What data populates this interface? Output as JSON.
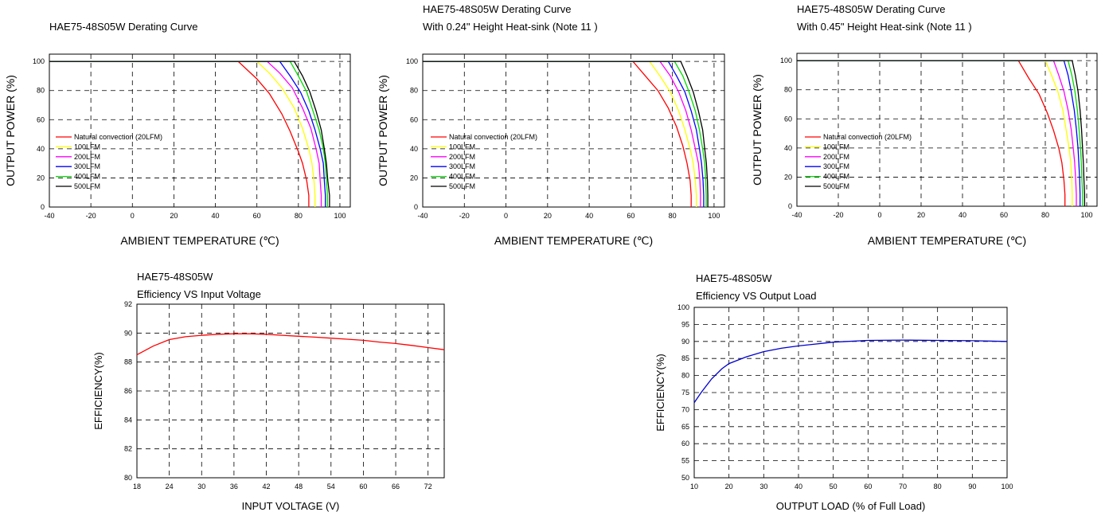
{
  "chart_data": [
    {
      "id": "derate1",
      "type": "line",
      "title_lines": [
        "HAE75-48S05W Derating Curve"
      ],
      "xlabel": "AMBIENT TEMPERATURE (℃)",
      "ylabel": "OUTPUT POWER (%)",
      "xlim": [
        -40,
        105
      ],
      "ylim": [
        0,
        105
      ],
      "xticks": [
        -40,
        -20,
        0,
        20,
        40,
        60,
        80,
        100
      ],
      "yticks": [
        0,
        20,
        40,
        60,
        80,
        100
      ],
      "legend_position": "bottom-left",
      "series": [
        {
          "name": "Natural convection (20LFM)",
          "color": "#ff0000",
          "x": [
            -40,
            51,
            60,
            66,
            72,
            76,
            80,
            82,
            84,
            85,
            85
          ],
          "y": [
            100,
            100,
            88,
            78,
            64,
            52,
            38,
            30,
            18,
            8,
            0
          ]
        },
        {
          "name": "100LFM",
          "color": "#ffff00",
          "x": [
            -40,
            60,
            66,
            72,
            78,
            82,
            85,
            86.5,
            87.5,
            88,
            88
          ],
          "y": [
            100,
            100,
            92,
            82,
            68,
            54,
            40,
            30,
            18,
            8,
            0
          ]
        },
        {
          "name": "200LFM",
          "color": "#ff00ff",
          "x": [
            -40,
            65,
            71,
            77,
            82,
            86,
            88.5,
            90,
            90.5,
            91,
            91
          ],
          "y": [
            100,
            100,
            92,
            82,
            68,
            54,
            40,
            30,
            18,
            8,
            0
          ]
        },
        {
          "name": "300LFM",
          "color": "#0000ff",
          "x": [
            -40,
            71,
            76,
            81,
            85,
            88,
            90.5,
            92,
            92.5,
            93,
            93
          ],
          "y": [
            100,
            100,
            90,
            79,
            66,
            53,
            40,
            30,
            18,
            8,
            0
          ]
        },
        {
          "name": "400LFM",
          "color": "#00dd00",
          "x": [
            -40,
            76,
            80,
            84,
            87,
            90,
            92,
            93,
            93.5,
            94,
            94
          ],
          "y": [
            100,
            100,
            90,
            79,
            66,
            53,
            40,
            30,
            18,
            8,
            0
          ]
        },
        {
          "name": "500LFM",
          "color": "#000000",
          "x": [
            -40,
            78,
            82,
            85.5,
            88.5,
            91,
            92.5,
            93.5,
            94.2,
            95,
            95
          ],
          "y": [
            100,
            100,
            90,
            79,
            66,
            53,
            40,
            30,
            18,
            8,
            0
          ]
        }
      ]
    },
    {
      "id": "derate2",
      "type": "line",
      "title_lines": [
        "HAE75-48S05W Derating Curve",
        "With 0.24\" Height Heat-sink (Note 11 )"
      ],
      "xlabel": "AMBIENT TEMPERATURE (℃)",
      "ylabel": "OUTPUT POWER (%)",
      "xlim": [
        -40,
        105
      ],
      "ylim": [
        0,
        105
      ],
      "xticks": [
        -40,
        -20,
        0,
        20,
        40,
        60,
        80,
        100
      ],
      "yticks": [
        0,
        20,
        40,
        60,
        80,
        100
      ],
      "legend_position": "bottom-left",
      "series": [
        {
          "name": "Natural convection (20LFM)",
          "color": "#ff0000",
          "x": [
            -40,
            61,
            67,
            73,
            78,
            82,
            85,
            87,
            88.5,
            89,
            89
          ],
          "y": [
            100,
            100,
            90,
            80,
            68,
            55,
            42,
            30,
            18,
            8,
            0
          ]
        },
        {
          "name": "100LFM",
          "color": "#ffff00",
          "x": [
            -40,
            69,
            74,
            79,
            83,
            86,
            88.5,
            90,
            91,
            91.5,
            91.5
          ],
          "y": [
            100,
            100,
            90,
            79,
            66,
            53,
            40,
            30,
            18,
            8,
            0
          ]
        },
        {
          "name": "200LFM",
          "color": "#ff00ff",
          "x": [
            -40,
            74,
            79,
            83,
            86.5,
            89,
            91,
            92.5,
            93.2,
            93.5,
            93.5
          ],
          "y": [
            100,
            100,
            90,
            79,
            66,
            53,
            40,
            30,
            18,
            8,
            0
          ]
        },
        {
          "name": "300LFM",
          "color": "#0000ff",
          "x": [
            -40,
            78,
            82,
            86,
            89,
            91.5,
            93,
            94,
            94.7,
            95,
            95
          ],
          "y": [
            100,
            100,
            90,
            79,
            66,
            53,
            40,
            30,
            18,
            8,
            0
          ]
        },
        {
          "name": "400LFM",
          "color": "#00dd00",
          "x": [
            -40,
            81,
            85,
            88,
            91,
            93,
            94.5,
            95.5,
            96,
            96.2,
            96.2
          ],
          "y": [
            100,
            100,
            90,
            79,
            66,
            53,
            40,
            30,
            18,
            8,
            0
          ]
        },
        {
          "name": "500LFM",
          "color": "#000000",
          "x": [
            -40,
            84,
            87,
            90,
            92.5,
            94.5,
            95.5,
            96.3,
            96.8,
            97,
            97
          ],
          "y": [
            100,
            100,
            90,
            79,
            66,
            53,
            40,
            30,
            18,
            8,
            0
          ]
        }
      ]
    },
    {
      "id": "derate3",
      "type": "line",
      "title_lines": [
        "HAE75-48S05W Derating Curve",
        "With 0.45\" Height Heat-sink (Note 11 )"
      ],
      "xlabel": "AMBIENT TEMPERATURE (℃)",
      "ylabel": "OUTPUT POWER (%)",
      "xlim": [
        -40,
        105
      ],
      "ylim": [
        0,
        105
      ],
      "xticks": [
        -40,
        -20,
        0,
        20,
        40,
        60,
        80,
        100
      ],
      "yticks": [
        0,
        20,
        40,
        60,
        80,
        100
      ],
      "legend_position": "bottom-left",
      "series": [
        {
          "name": "Natural convection (20LFM)",
          "color": "#ff0000",
          "x": [
            -40,
            67,
            72,
            77,
            81,
            84,
            86.5,
            88,
            89,
            89.5,
            89.5
          ],
          "y": [
            100,
            100,
            88,
            77,
            64,
            52,
            40,
            30,
            18,
            8,
            0
          ]
        },
        {
          "name": "100LFM",
          "color": "#ffff00",
          "x": [
            -40,
            80,
            83,
            86,
            88.5,
            90,
            91.5,
            92.3,
            92.8,
            93,
            93
          ],
          "y": [
            100,
            100,
            90,
            79,
            66,
            53,
            40,
            30,
            18,
            8,
            0
          ]
        },
        {
          "name": "200LFM",
          "color": "#ff00ff",
          "x": [
            -40,
            84,
            86.5,
            89,
            91,
            92.5,
            93.5,
            94.2,
            94.7,
            95,
            95
          ],
          "y": [
            100,
            100,
            90,
            79,
            66,
            53,
            40,
            30,
            18,
            8,
            0
          ]
        },
        {
          "name": "300LFM",
          "color": "#0000ff",
          "x": [
            -40,
            89,
            91,
            92.5,
            94,
            95,
            95.8,
            96.2,
            96.6,
            96.8,
            96.8
          ],
          "y": [
            100,
            100,
            90,
            79,
            66,
            53,
            40,
            30,
            18,
            8,
            0
          ]
        },
        {
          "name": "400LFM",
          "color": "#00dd00",
          "x": [
            -40,
            91,
            92.8,
            94.3,
            95.5,
            96.3,
            97,
            97.4,
            97.7,
            98,
            98
          ],
          "y": [
            100,
            100,
            90,
            79,
            66,
            53,
            40,
            30,
            18,
            8,
            0
          ]
        },
        {
          "name": "500LFM",
          "color": "#000000",
          "x": [
            -40,
            93,
            94.5,
            95.8,
            96.8,
            97.5,
            98,
            98.4,
            98.7,
            99,
            99
          ],
          "y": [
            100,
            100,
            90,
            79,
            66,
            53,
            40,
            30,
            18,
            8,
            0
          ]
        }
      ]
    },
    {
      "id": "eff_vin",
      "type": "line",
      "title_lines": [
        "HAE75-48S05W",
        "Efficiency VS Input Voltage"
      ],
      "xlabel": "INPUT VOLTAGE (V)",
      "ylabel": "EFFICIENCY(%)",
      "xlim": [
        18,
        75
      ],
      "ylim": [
        80,
        92
      ],
      "xticks": [
        18,
        24,
        30,
        36,
        42,
        48,
        54,
        60,
        66,
        72
      ],
      "yticks": [
        80,
        82,
        84,
        86,
        88,
        90,
        92
      ],
      "series": [
        {
          "color": "#ff0000",
          "x": [
            18,
            21,
            24,
            27,
            30,
            33,
            36,
            39,
            42,
            45,
            48,
            51,
            54,
            57,
            60,
            63,
            66,
            69,
            72,
            75
          ],
          "y": [
            88.5,
            89.1,
            89.55,
            89.75,
            89.85,
            89.92,
            89.95,
            89.95,
            89.92,
            89.85,
            89.78,
            89.72,
            89.65,
            89.58,
            89.5,
            89.38,
            89.28,
            89.15,
            89.0,
            88.85
          ]
        }
      ]
    },
    {
      "id": "eff_load",
      "type": "line",
      "title_lines": [
        "HAE75-48S05W",
        "Efficiency VS Output Load"
      ],
      "xlabel": "OUTPUT LOAD (% of Full Load)",
      "ylabel": "EFFICIENCY(%)",
      "xlim": [
        10,
        100
      ],
      "ylim": [
        50,
        100
      ],
      "xticks": [
        10,
        20,
        30,
        40,
        50,
        60,
        70,
        80,
        90,
        100
      ],
      "yticks": [
        50,
        55,
        60,
        65,
        70,
        75,
        80,
        85,
        90,
        95,
        100
      ],
      "series": [
        {
          "color": "#0000cc",
          "x": [
            10,
            12,
            15,
            18,
            20,
            25,
            30,
            35,
            40,
            50,
            60,
            70,
            80,
            90,
            100
          ],
          "y": [
            72,
            75,
            79,
            82,
            83.5,
            85.5,
            87,
            88,
            88.7,
            89.8,
            90.3,
            90.4,
            90.3,
            90.2,
            90.0
          ]
        }
      ]
    }
  ]
}
